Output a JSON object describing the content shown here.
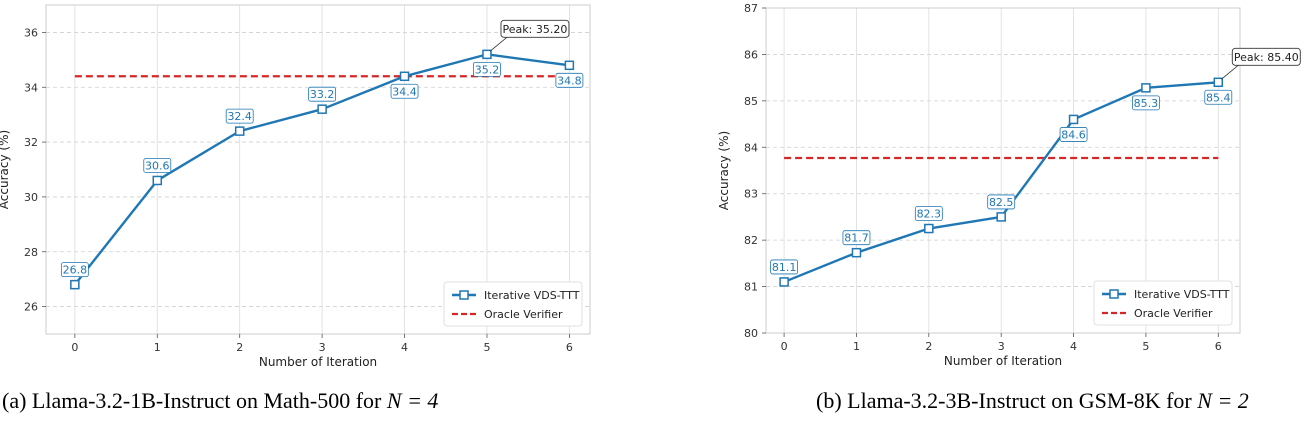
{
  "chart_data": [
    {
      "type": "line",
      "x": [
        0,
        1,
        2,
        3,
        4,
        5,
        6
      ],
      "xticks": [
        "0",
        "1",
        "2",
        "3",
        "4",
        "5",
        "6"
      ],
      "xlabel": "Number of Iteration",
      "ylabel": "Accuracy (%)",
      "ylim": [
        25,
        37
      ],
      "xlim": [
        -0.35,
        6.25
      ],
      "yticks": [
        26,
        28,
        30,
        32,
        34,
        36
      ],
      "ytick_labels": [
        "26",
        "28",
        "30",
        "32",
        "34",
        "36"
      ],
      "grid": true,
      "legend_position": "bottom-right",
      "series": [
        {
          "name": "Iterative VDS-TTT",
          "style": "solid",
          "marker": "square",
          "color": "#1f77b4",
          "values": [
            26.8,
            30.6,
            32.4,
            33.2,
            34.4,
            35.2,
            34.8
          ],
          "labels": [
            "26.8",
            "30.6",
            "32.4",
            "33.2",
            "34.4",
            "35.2",
            "34.8"
          ],
          "label_positions": [
            "above",
            "above",
            "above",
            "above",
            "below",
            "below",
            "below"
          ]
        },
        {
          "name": "Oracle Verifier",
          "style": "dashed",
          "color": "#d62728",
          "value": 34.4,
          "x_range": [
            0,
            6
          ]
        }
      ],
      "annotation": {
        "text": "Peak: 35.20",
        "x": 5,
        "y": 35.2
      }
    },
    {
      "type": "line",
      "x": [
        0,
        1,
        2,
        3,
        4,
        5,
        6
      ],
      "xticks": [
        "0",
        "1",
        "2",
        "3",
        "4",
        "5",
        "6"
      ],
      "xlabel": "Number of Iteration",
      "ylabel": "Accuracy (%)",
      "ylim": [
        80,
        87
      ],
      "xlim": [
        -0.25,
        6.3
      ],
      "yticks": [
        80,
        81,
        82,
        83,
        84,
        85,
        86,
        87
      ],
      "ytick_labels": [
        "80",
        "81",
        "82",
        "83",
        "84",
        "85",
        "86",
        "87"
      ],
      "grid": true,
      "legend_position": "bottom-right",
      "series": [
        {
          "name": "Iterative VDS-TTT",
          "style": "solid",
          "marker": "square",
          "color": "#1f77b4",
          "values": [
            81.1,
            81.73,
            82.25,
            82.5,
            84.6,
            85.28,
            85.4
          ],
          "labels": [
            "81.1",
            "81.7",
            "82.3",
            "82.5",
            "84.6",
            "85.3",
            "85.4"
          ],
          "label_positions": [
            "above",
            "above",
            "above",
            "above",
            "below",
            "below",
            "below"
          ]
        },
        {
          "name": "Oracle Verifier",
          "style": "dashed",
          "color": "#d62728",
          "value": 83.77,
          "x_range": [
            0,
            6
          ]
        }
      ],
      "annotation": {
        "text": "Peak: 85.40",
        "x": 6,
        "y": 85.4
      }
    }
  ],
  "captions": {
    "a": {
      "text": "(a) Llama-3.2-1B-Instruct on Math-500 for ",
      "math": "N = 4"
    },
    "b": {
      "text": "(b) Llama-3.2-3B-Instruct on GSM-8K for ",
      "math": "N = 2"
    }
  }
}
